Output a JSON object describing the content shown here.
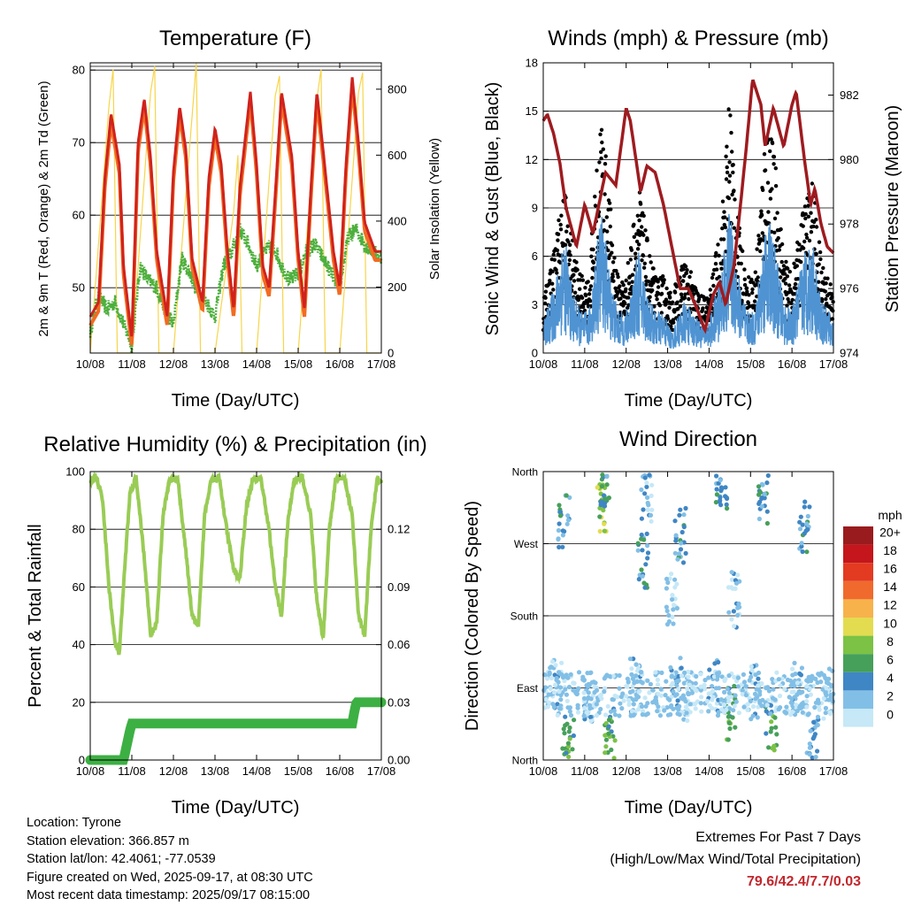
{
  "x_ticks": [
    "10/08",
    "11/08",
    "12/08",
    "13/08",
    "14/08",
    "15/08",
    "16/08",
    "17/08"
  ],
  "x_label": "Time (Day/UTC)",
  "panels": {
    "temperature": {
      "title": "Temperature (F)",
      "left_label": "2m & 9m T (Red, Orange) & 2m Td (Green)",
      "right_label": "Solar Insolation (Yellow)",
      "left_ticks": [
        "50",
        "60",
        "70",
        "80"
      ],
      "right_ticks": [
        "0",
        "200",
        "400",
        "600",
        "800"
      ]
    },
    "winds": {
      "title": "Winds (mph) & Pressure (mb)",
      "left_label": "Sonic Wind & Gust (Blue, Black)",
      "right_label": "Station Pressure (Maroon)",
      "left_ticks": [
        "0",
        "3",
        "6",
        "9",
        "12",
        "15",
        "18"
      ],
      "right_ticks": [
        "974",
        "976",
        "978",
        "980",
        "982"
      ]
    },
    "humidity": {
      "title": "Relative Humidity (%) & Precipitation (in)",
      "left_label": "Percent & Total Rainfall",
      "left_ticks": [
        "0",
        "20",
        "40",
        "60",
        "80",
        "100"
      ],
      "right_ticks": [
        "0.00",
        "0.03",
        "0.06",
        "0.09",
        "0.12"
      ]
    },
    "direction": {
      "title": "Wind Direction",
      "left_label": "Direction (Colored By Speed)",
      "left_ticks": [
        "North",
        "East",
        "South",
        "West",
        "North"
      ],
      "legend_title": "mph",
      "legend_labels": [
        "0",
        "2",
        "4",
        "6",
        "8",
        "10",
        "12",
        "14",
        "16",
        "18",
        "20+"
      ],
      "legend_colors": [
        "#c6e8f7",
        "#82bfe6",
        "#3f86c4",
        "#46a05a",
        "#7cc244",
        "#e3dc50",
        "#f7b24c",
        "#f06a2d",
        "#e33a22",
        "#c4161c",
        "#9a1b1e"
      ]
    }
  },
  "info": {
    "location": "Location: Tyrone",
    "elevation": "Station elevation: 366.857 m",
    "latlon": "Station lat/lon: 42.4061; -77.0539",
    "created": "Figure created on Wed, 2025-09-17, at 08:30 UTC",
    "recent": "Most recent data timestamp: 2025/09/17 08:15:00"
  },
  "extremes": {
    "line1": "Extremes For Past 7 Days",
    "line2": "(High/Low/Max Wind/Total Precipitation)",
    "values": "79.6/42.4/7.7/0.03"
  },
  "colors": {
    "temp2m": "#d0221c",
    "temp9m": "#f26b22",
    "dewpoint": "#4daf3c",
    "solar": "#f7d54a",
    "gust": "#000000",
    "wind": "#4f93d2",
    "pressure": "#9e1b1f",
    "rh": "#99cc55",
    "precip": "#3cb043"
  },
  "chart_data": [
    {
      "type": "line",
      "title": "Temperature (F)",
      "xlabel": "Time (Day/UTC)",
      "ylabel": "2m & 9m T (Red, Orange) & 2m Td (Green)",
      "y2label": "Solar Insolation (Yellow)",
      "xlim": [
        0,
        7
      ],
      "ylim": [
        41,
        81
      ],
      "y2lim": [
        0,
        880
      ],
      "x_unit": "days since 10/08 00 UTC",
      "series": [
        {
          "name": "2m T",
          "axis": "left",
          "x": [
            0,
            0.2,
            0.35,
            0.5,
            0.7,
            0.8,
            1.0,
            1.15,
            1.3,
            1.45,
            1.6,
            1.85,
            2.0,
            2.15,
            2.3,
            2.45,
            2.7,
            2.85,
            3.0,
            3.15,
            3.3,
            3.45,
            3.6,
            3.85,
            4.0,
            4.15,
            4.3,
            4.45,
            4.6,
            4.85,
            5.0,
            5.15,
            5.3,
            5.45,
            5.6,
            5.85,
            6.0,
            6.15,
            6.3,
            6.45,
            6.6,
            6.85,
            7.0
          ],
          "y": [
            46,
            48,
            65,
            74,
            67,
            53,
            43,
            70,
            76,
            68,
            55,
            46,
            66,
            75,
            69,
            54,
            48,
            65,
            72,
            67,
            55,
            47,
            64,
            77,
            67,
            53,
            50,
            63,
            77,
            68,
            55,
            47,
            63,
            77,
            69,
            55,
            50,
            67,
            79,
            70,
            59,
            55,
            55
          ]
        },
        {
          "name": "2m Td",
          "axis": "left",
          "x": [
            0,
            0.2,
            0.4,
            0.6,
            0.8,
            1.0,
            1.2,
            1.4,
            1.6,
            1.8,
            2.0,
            2.2,
            2.4,
            2.6,
            2.8,
            3.0,
            3.2,
            3.4,
            3.6,
            3.8,
            4.0,
            4.2,
            4.4,
            4.6,
            4.8,
            5.0,
            5.2,
            5.4,
            5.6,
            5.8,
            6.0,
            6.2,
            6.4,
            6.6,
            6.8,
            7.0
          ],
          "y": [
            44,
            49,
            47,
            48,
            45,
            42,
            53,
            51,
            50,
            47,
            45,
            54,
            52,
            49,
            48,
            46,
            53,
            55,
            58,
            56,
            53,
            55,
            56,
            53,
            51,
            52,
            55,
            56,
            54,
            52,
            50,
            57,
            58,
            56,
            55,
            54
          ]
        },
        {
          "name": "Solar Insolation",
          "axis": "right",
          "x": [
            0,
            0.45,
            0.55,
            0.65,
            1.0,
            1.45,
            1.55,
            1.65,
            2.0,
            2.45,
            2.55,
            2.65,
            3.0,
            3.45,
            3.55,
            3.65,
            4.0,
            4.45,
            4.55,
            4.65,
            5.0,
            5.45,
            5.55,
            5.65,
            6.0,
            6.45,
            6.55,
            6.65,
            7.0
          ],
          "y": [
            0,
            750,
            860,
            0,
            0,
            790,
            870,
            0,
            0,
            720,
            880,
            0,
            0,
            430,
            600,
            0,
            0,
            780,
            840,
            0,
            0,
            770,
            860,
            0,
            0,
            790,
            850,
            0,
            0
          ]
        }
      ]
    },
    {
      "type": "line",
      "title": "Winds (mph) & Pressure (mb)",
      "xlabel": "Time (Day/UTC)",
      "ylabel": "Sonic Wind & Gust (Blue, Black)",
      "y2label": "Station Pressure (Maroon)",
      "xlim": [
        0,
        7
      ],
      "ylim": [
        0,
        18
      ],
      "y2lim": [
        974,
        983
      ],
      "series": [
        {
          "name": "Gust",
          "axis": "left",
          "x": [
            0,
            0.3,
            0.5,
            0.7,
            0.9,
            1.1,
            1.4,
            1.6,
            1.8,
            2.0,
            2.3,
            2.5,
            2.7,
            2.9,
            3.1,
            3.4,
            3.6,
            3.8,
            4.0,
            4.3,
            4.5,
            4.7,
            4.9,
            5.1,
            5.4,
            5.6,
            5.8,
            6.0,
            6.3,
            6.5,
            6.7,
            6.9,
            7.0
          ],
          "y": [
            3,
            6,
            9,
            6,
            4,
            4,
            13,
            8,
            4,
            4,
            9,
            6,
            4,
            4,
            3,
            5,
            4,
            3,
            3,
            7,
            14,
            7,
            4,
            4,
            13,
            10,
            5,
            4,
            8,
            9,
            5,
            4,
            3
          ]
        },
        {
          "name": "Wind",
          "axis": "left",
          "x": [
            0,
            0.3,
            0.5,
            0.7,
            0.9,
            1.1,
            1.4,
            1.6,
            1.8,
            2.0,
            2.3,
            2.5,
            2.7,
            2.9,
            3.1,
            3.4,
            3.6,
            3.8,
            4.0,
            4.3,
            4.5,
            4.7,
            4.9,
            5.1,
            5.4,
            5.6,
            5.8,
            6.0,
            6.3,
            6.5,
            6.7,
            6.9,
            7.0
          ],
          "y": [
            1.5,
            3.5,
            6,
            3,
            2,
            2,
            7,
            4,
            2,
            2,
            5,
            3,
            2,
            2,
            1,
            2.5,
            2,
            1.5,
            1.5,
            4,
            7,
            4,
            2,
            2,
            7,
            5,
            2.5,
            2,
            5,
            5.5,
            2.5,
            2,
            1.5
          ]
        },
        {
          "name": "Station Pressure",
          "axis": "right",
          "x": [
            0,
            0.1,
            0.25,
            0.4,
            0.55,
            0.8,
            1.0,
            1.2,
            1.5,
            1.75,
            2.0,
            2.1,
            2.35,
            2.5,
            2.7,
            2.9,
            3.1,
            3.3,
            3.5,
            3.7,
            3.9,
            4.1,
            4.25,
            4.4,
            4.6,
            4.75,
            4.9,
            5.05,
            5.25,
            5.35,
            5.55,
            5.8,
            6.0,
            6.1,
            6.3,
            6.45,
            6.55,
            6.7,
            6.85,
            7.0
          ],
          "y": [
            981.2,
            981.4,
            980.8,
            979.9,
            978.5,
            977.3,
            978.6,
            977.7,
            979.6,
            979.2,
            981.6,
            981.2,
            979.0,
            979.8,
            979.6,
            978.6,
            977.3,
            976.0,
            976.0,
            975.4,
            974.7,
            975.8,
            976.2,
            975.5,
            976.7,
            978.5,
            980.4,
            982.5,
            981.7,
            980.4,
            981.6,
            980.4,
            981.7,
            982.1,
            980.0,
            978.6,
            979.1,
            978.0,
            977.3,
            977.1
          ]
        }
      ]
    },
    {
      "type": "line",
      "title": "Relative Humidity (%) & Precipitation (in)",
      "xlabel": "Time (Day/UTC)",
      "ylabel": "Percent & Total Rainfall",
      "xlim": [
        0,
        7
      ],
      "ylim": [
        0,
        100
      ],
      "y2lim": [
        0,
        0.15
      ],
      "series": [
        {
          "name": "Relative Humidity",
          "axis": "left",
          "x": [
            0,
            0.15,
            0.3,
            0.45,
            0.6,
            0.7,
            0.8,
            0.95,
            1.1,
            1.3,
            1.45,
            1.6,
            1.75,
            1.9,
            2.1,
            2.3,
            2.45,
            2.6,
            2.75,
            2.9,
            3.1,
            3.3,
            3.45,
            3.6,
            3.75,
            3.9,
            4.1,
            4.3,
            4.45,
            4.6,
            4.75,
            4.9,
            5.1,
            5.3,
            5.45,
            5.6,
            5.75,
            5.9,
            6.1,
            6.3,
            6.45,
            6.6,
            6.75,
            6.9,
            7.0
          ],
          "y": [
            97,
            98,
            90,
            60,
            40,
            37,
            60,
            92,
            98,
            70,
            43,
            48,
            85,
            97,
            98,
            72,
            50,
            46,
            85,
            97,
            98,
            78,
            66,
            63,
            87,
            97,
            98,
            80,
            60,
            50,
            82,
            97,
            98,
            85,
            55,
            42,
            80,
            97,
            98,
            85,
            50,
            43,
            80,
            97,
            97
          ]
        },
        {
          "name": "Total Rainfall",
          "axis": "right",
          "x": [
            0,
            0.5,
            0.8,
            0.85,
            0.95,
            1.0,
            6.3,
            6.35,
            6.4,
            7.0
          ],
          "y": [
            0,
            0,
            0,
            0.005,
            0.015,
            0.019,
            0.019,
            0.025,
            0.03,
            0.03
          ]
        }
      ]
    },
    {
      "type": "scatter",
      "title": "Wind Direction",
      "xlabel": "Time (Day/UTC)",
      "ylabel": "Direction (Colored By Speed)",
      "xlim": [
        0,
        7
      ],
      "y_categories": [
        "North",
        "East",
        "South",
        "West",
        "North"
      ],
      "ylim": [
        0,
        360
      ],
      "x": [
        0.3,
        0.5,
        0.6,
        1.1,
        1.4,
        1.5,
        1.6,
        2.2,
        2.4,
        2.5,
        3.1,
        3.2,
        3.3,
        3.5,
        4.1,
        4.3,
        4.5,
        4.6,
        5.1,
        5.3,
        5.5,
        6.1,
        6.3,
        6.5,
        6.9
      ],
      "y": [
        90,
        300,
        20,
        80,
        320,
        350,
        30,
        95,
        250,
        330,
        200,
        100,
        280,
        80,
        90,
        340,
        60,
        200,
        85,
        330,
        40,
        90,
        290,
        20,
        80
      ],
      "speed_mph": [
        2,
        4,
        6,
        2,
        8,
        4,
        6,
        2,
        4,
        2,
        1,
        3,
        4,
        1,
        2,
        4,
        6,
        2,
        2,
        4,
        6,
        2,
        4,
        3,
        1
      ]
    }
  ]
}
